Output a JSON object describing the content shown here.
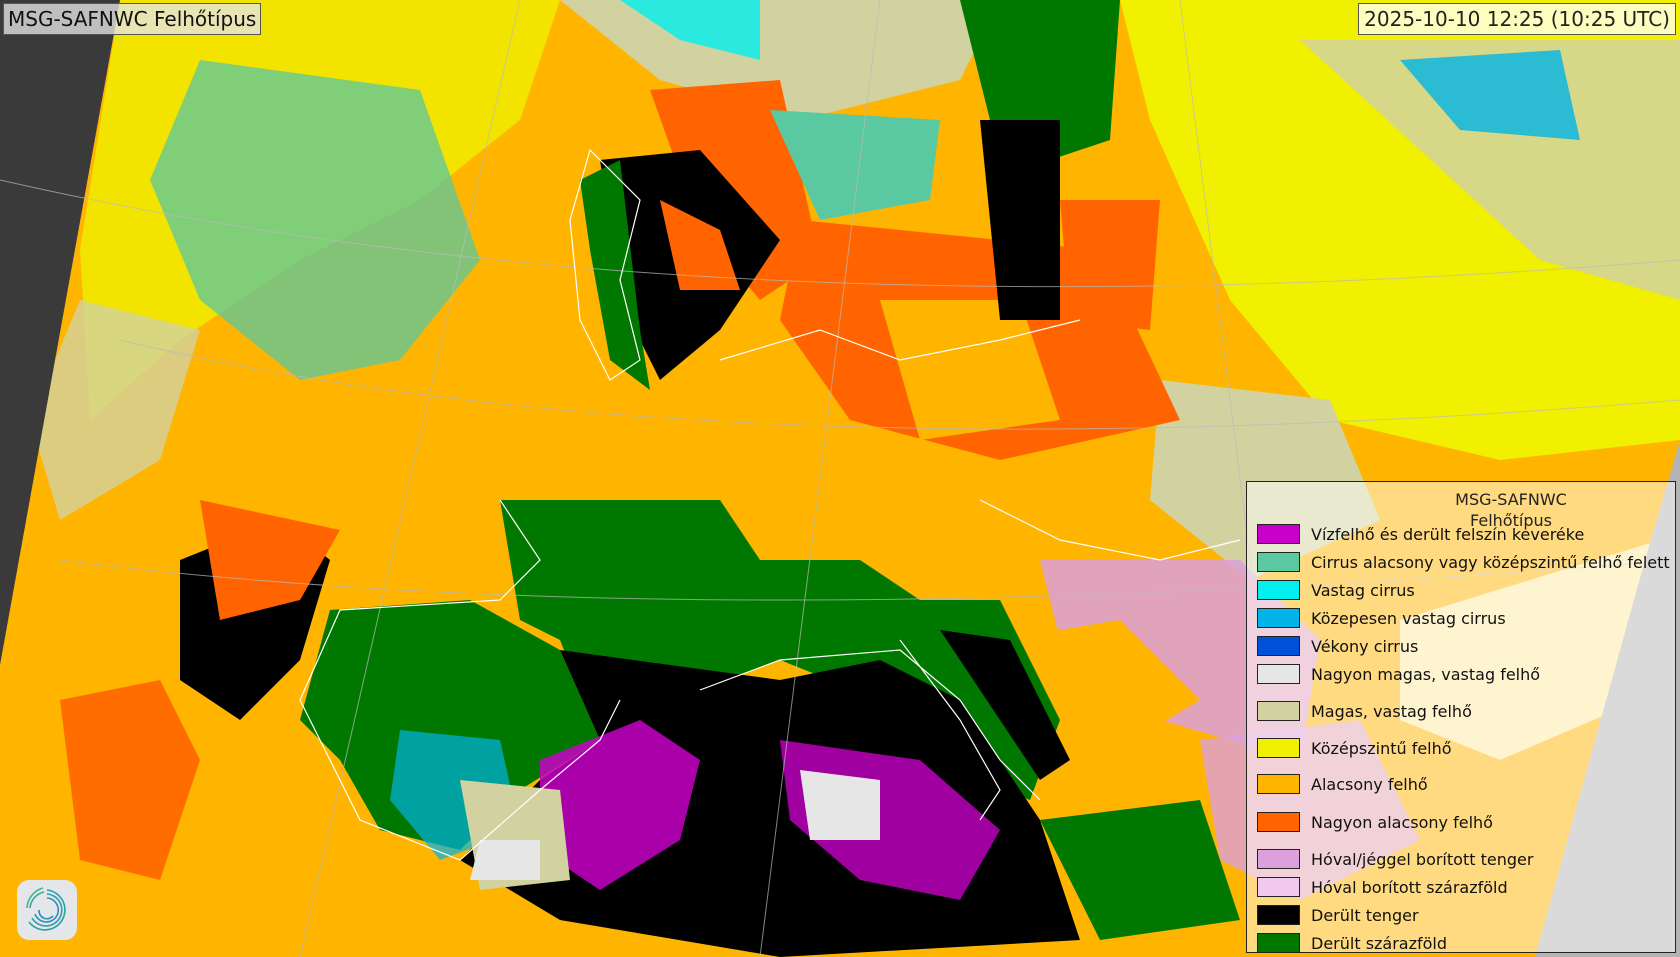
{
  "header": {
    "title": "MSG-SAFNWC Felhőtípus",
    "timestamp": "2025-10-10 12:25 (10:25 UTC)"
  },
  "legend": {
    "title_line1": "MSG-SAFNWC",
    "title_line2": "Felhőtípus",
    "items": [
      {
        "label": "Vízfelhő és derült felszín keveréke",
        "color": "#c800c8"
      },
      {
        "label": "Cirrus alacsony vagy középszintű felhő felett",
        "color": "#5ac8a0"
      },
      {
        "label": "Vastag cirrus",
        "color": "#00f0f0"
      },
      {
        "label": "Közepesen vastag cirrus",
        "color": "#00b4e6"
      },
      {
        "label": "Vékony cirrus",
        "color": "#0050dc"
      },
      {
        "label": "Nagyon magas, vastag felhő",
        "color": "#e6e6e6"
      },
      {
        "label": "Magas, vastag felhő",
        "color": "#d2d2a0"
      },
      {
        "label": "Középszintű felhő",
        "color": "#f0f000"
      },
      {
        "label": "Alacsony felhő",
        "color": "#ffb400"
      },
      {
        "label": "Nagyon alacsony felhő",
        "color": "#ff6400"
      },
      {
        "label": "Hóval/jéggel borított tenger",
        "color": "#dca0dc"
      },
      {
        "label": "Hóval borított szárazföld",
        "color": "#f0c8f0"
      },
      {
        "label": "Derült tenger",
        "color": "#000000"
      },
      {
        "label": "Derült szárazföld",
        "color": "#007800"
      }
    ]
  },
  "logo": {
    "icon": "swirl-logo-icon"
  }
}
